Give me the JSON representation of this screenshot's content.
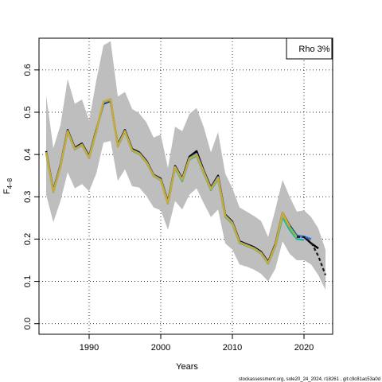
{
  "chart_data": {
    "type": "line",
    "title": "",
    "xlabel": "Years",
    "ylabel_base": "F",
    "ylabel_sub": "4–8",
    "legend": "Rho 3%",
    "footer": "stockassessment.org, sole20_24_2024, r18261 , git:c9c81ac53a0d",
    "xlim": [
      1983,
      2024
    ],
    "ylim": [
      -0.025,
      0.675
    ],
    "xticks": [
      1990,
      2000,
      2010,
      2020
    ],
    "yticks": [
      0.0,
      0.1,
      0.2,
      0.3,
      0.4,
      0.5,
      0.6
    ],
    "ytick_labels": [
      "0.0",
      "0.1",
      "0.2",
      "0.3",
      "0.4",
      "0.5",
      "0.6"
    ],
    "grid": true,
    "band_color": "#bebebe",
    "years": [
      1984,
      1985,
      1986,
      1987,
      1988,
      1989,
      1990,
      1991,
      1992,
      1993,
      1994,
      1995,
      1996,
      1997,
      1998,
      1999,
      2000,
      2001,
      2002,
      2003,
      2004,
      2005,
      2006,
      2007,
      2008,
      2009,
      2010,
      2011,
      2012,
      2013,
      2014,
      2015,
      2016,
      2017,
      2018,
      2019,
      2020,
      2021,
      2022,
      2023
    ],
    "estimate": [
      0.405,
      0.312,
      0.372,
      0.455,
      0.413,
      0.423,
      0.393,
      0.455,
      0.525,
      0.53,
      0.42,
      0.455,
      0.41,
      0.402,
      0.382,
      0.35,
      0.34,
      0.285,
      0.37,
      0.34,
      0.39,
      0.4,
      0.358,
      0.318,
      0.345,
      0.255,
      0.238,
      0.192,
      0.185,
      0.178,
      0.167,
      0.143,
      0.185,
      0.258,
      0.228,
      0.205,
      0.205,
      0.192,
      0.16,
      0.115
    ],
    "upper": [
      0.54,
      0.415,
      0.47,
      0.578,
      0.52,
      0.53,
      0.48,
      0.575,
      0.658,
      0.668,
      0.537,
      0.548,
      0.508,
      0.497,
      0.476,
      0.44,
      0.447,
      0.368,
      0.466,
      0.455,
      0.496,
      0.51,
      0.465,
      0.405,
      0.453,
      0.355,
      0.32,
      0.275,
      0.265,
      0.255,
      0.243,
      0.205,
      0.27,
      0.34,
      0.3,
      0.265,
      0.268,
      0.252,
      0.225,
      0.175
    ],
    "lower": [
      0.305,
      0.24,
      0.29,
      0.358,
      0.32,
      0.33,
      0.313,
      0.355,
      0.428,
      0.432,
      0.338,
      0.365,
      0.325,
      0.322,
      0.302,
      0.275,
      0.268,
      0.222,
      0.29,
      0.27,
      0.305,
      0.32,
      0.285,
      0.252,
      0.27,
      0.19,
      0.175,
      0.14,
      0.135,
      0.128,
      0.118,
      0.1,
      0.13,
      0.195,
      0.165,
      0.15,
      0.15,
      0.14,
      0.115,
      0.08
    ],
    "peels": [
      {
        "color": "#000000",
        "dashed": false,
        "x": [
          1984,
          1985,
          1986,
          1987,
          1988,
          1989,
          1990,
          1991,
          1992,
          1993,
          1994,
          1995,
          1996,
          1997,
          1998,
          1999,
          2000,
          2001,
          2002,
          2003,
          2004,
          2005,
          2006,
          2007,
          2008,
          2009,
          2010,
          2011,
          2012,
          2013,
          2014,
          2015,
          2016,
          2017,
          2018,
          2019,
          2020,
          2021,
          2022
        ],
        "y": [
          0.408,
          0.315,
          0.375,
          0.458,
          0.416,
          0.426,
          0.396,
          0.458,
          0.52,
          0.527,
          0.423,
          0.458,
          0.413,
          0.405,
          0.385,
          0.352,
          0.343,
          0.288,
          0.373,
          0.343,
          0.395,
          0.408,
          0.362,
          0.322,
          0.35,
          0.258,
          0.241,
          0.195,
          0.188,
          0.181,
          0.17,
          0.146,
          0.188,
          0.262,
          0.232,
          0.208,
          0.205,
          0.19,
          0.178
        ]
      },
      {
        "color": "#3a6ee8",
        "dashed": false,
        "x": [
          1984,
          1985,
          1986,
          1987,
          1988,
          1989,
          1990,
          1991,
          1992,
          1993,
          1994,
          1995,
          1996,
          1997,
          1998,
          1999,
          2000,
          2001,
          2002,
          2003,
          2004,
          2005,
          2006,
          2007,
          2008,
          2009,
          2010,
          2011,
          2012,
          2013,
          2014,
          2015,
          2016,
          2017,
          2018,
          2019,
          2020,
          2021
        ],
        "y": [
          0.406,
          0.313,
          0.373,
          0.456,
          0.414,
          0.424,
          0.394,
          0.456,
          0.522,
          0.528,
          0.421,
          0.456,
          0.411,
          0.403,
          0.383,
          0.351,
          0.341,
          0.286,
          0.371,
          0.341,
          0.392,
          0.402,
          0.36,
          0.32,
          0.347,
          0.256,
          0.239,
          0.193,
          0.186,
          0.179,
          0.168,
          0.144,
          0.186,
          0.259,
          0.23,
          0.207,
          0.206,
          0.2
        ]
      },
      {
        "color": "#21b2a0",
        "dashed": false,
        "x": [
          1984,
          1985,
          1986,
          1987,
          1988,
          1989,
          1990,
          1991,
          1992,
          1993,
          1994,
          1995,
          1996,
          1997,
          1998,
          1999,
          2000,
          2001,
          2002,
          2003,
          2004,
          2005,
          2006,
          2007,
          2008,
          2009,
          2010,
          2011,
          2012,
          2013,
          2014,
          2015,
          2016,
          2017,
          2018,
          2019,
          2020
        ],
        "y": [
          0.404,
          0.311,
          0.371,
          0.454,
          0.412,
          0.422,
          0.392,
          0.454,
          0.524,
          0.531,
          0.419,
          0.454,
          0.409,
          0.401,
          0.381,
          0.349,
          0.339,
          0.284,
          0.368,
          0.337,
          0.388,
          0.397,
          0.356,
          0.316,
          0.342,
          0.253,
          0.236,
          0.191,
          0.184,
          0.177,
          0.166,
          0.142,
          0.183,
          0.252,
          0.222,
          0.2,
          0.198
        ]
      },
      {
        "color": "#8fbe3a",
        "dashed": false,
        "x": [
          1984,
          1985,
          1986,
          1987,
          1988,
          1989,
          1990,
          1991,
          1992,
          1993,
          1994,
          1995,
          1996,
          1997,
          1998,
          1999,
          2000,
          2001,
          2002,
          2003,
          2004,
          2005,
          2006,
          2007,
          2008,
          2009,
          2010,
          2011,
          2012,
          2013,
          2014,
          2015,
          2016,
          2017,
          2018,
          2019
        ],
        "y": [
          0.405,
          0.312,
          0.372,
          0.455,
          0.413,
          0.423,
          0.393,
          0.455,
          0.525,
          0.53,
          0.42,
          0.455,
          0.41,
          0.402,
          0.382,
          0.35,
          0.34,
          0.285,
          0.37,
          0.34,
          0.39,
          0.399,
          0.358,
          0.318,
          0.345,
          0.255,
          0.238,
          0.192,
          0.185,
          0.178,
          0.167,
          0.143,
          0.185,
          0.258,
          0.228,
          0.204
        ]
      },
      {
        "color": "#c9a93a",
        "dashed": false,
        "x": [
          1984,
          1985,
          1986,
          1987,
          1988,
          1989,
          1990,
          1991,
          1992,
          1993,
          1994,
          1995,
          1996,
          1997,
          1998,
          1999,
          2000,
          2001,
          2002,
          2003,
          2004,
          2005,
          2006,
          2007,
          2008,
          2009,
          2010,
          2011,
          2012,
          2013,
          2014,
          2015,
          2016,
          2017,
          2018
        ],
        "y": [
          0.405,
          0.312,
          0.372,
          0.455,
          0.413,
          0.423,
          0.393,
          0.455,
          0.525,
          0.531,
          0.42,
          0.455,
          0.41,
          0.402,
          0.382,
          0.35,
          0.34,
          0.285,
          0.37,
          0.34,
          0.39,
          0.4,
          0.358,
          0.318,
          0.345,
          0.255,
          0.238,
          0.192,
          0.185,
          0.178,
          0.167,
          0.143,
          0.185,
          0.262,
          0.23
        ]
      },
      {
        "color": "#1a1a1a",
        "dashed": true,
        "x": [
          2019,
          2020,
          2021,
          2022,
          2023
        ],
        "y": [
          0.205,
          0.205,
          0.192,
          0.16,
          0.115
        ]
      }
    ]
  }
}
